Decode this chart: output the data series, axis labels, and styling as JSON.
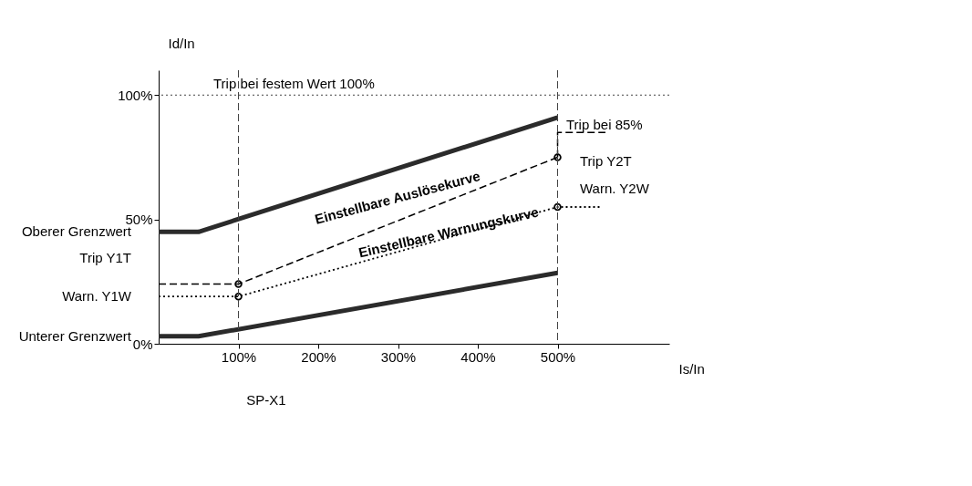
{
  "chart_data": {
    "type": "line",
    "xlabel": "Is/In",
    "ylabel": "Id/In",
    "xlim": [
      0,
      640
    ],
    "ylim": [
      0,
      110
    ],
    "xticks": [
      {
        "value": 100,
        "label": "100%"
      },
      {
        "value": 200,
        "label": "200%"
      },
      {
        "value": 300,
        "label": "300%"
      },
      {
        "value": 400,
        "label": "400%"
      },
      {
        "value": 500,
        "label": "500%"
      }
    ],
    "yticks": [
      {
        "value": 0,
        "label": "0%"
      },
      {
        "value": 50,
        "label": "50%"
      },
      {
        "value": 100,
        "label": "100%"
      }
    ],
    "series": [
      {
        "color": "#2b2b2b",
        "x": [
          0,
          50,
          500
        ],
        "values": [
          45,
          45,
          91
        ],
        "line_style": "solid"
      },
      {
        "color": "#2b2b2b",
        "x": [
          0,
          50,
          500
        ],
        "values": [
          3,
          3,
          28.5
        ],
        "line_style": "solid"
      },
      {
        "color": "#000000",
        "x": [
          0,
          100,
          500
        ],
        "values": [
          24,
          24,
          75
        ],
        "line_style": "dashed"
      },
      {
        "color": "#000000",
        "x": [
          500,
          500,
          560
        ],
        "values": [
          75,
          85,
          85
        ],
        "line_style": "dashed"
      },
      {
        "color": "#000000",
        "x": [
          0,
          100,
          500,
          555
        ],
        "values": [
          19,
          19,
          55,
          55
        ],
        "line_style": "dotted"
      },
      {
        "type": "scatter",
        "color": "#000000",
        "x": [
          100,
          100,
          500,
          500
        ],
        "values": [
          24,
          19,
          75,
          55
        ],
        "marker": "circle"
      }
    ],
    "ref_lines": [
      {
        "axis": "y",
        "value": 100,
        "label": "Trip bei festem Wert 100%",
        "line_style": "dotted",
        "color": "#444444"
      },
      {
        "axis": "x",
        "value": 100,
        "label": null,
        "line_style": "dashed",
        "color": "#444444"
      },
      {
        "axis": "x",
        "value": 500,
        "label": null,
        "line_style": "dashed",
        "color": "#444444"
      }
    ],
    "annotations": [
      "Oberer Grenzwert",
      "Trip Y1T",
      "Warn. Y1W",
      "Unterer Grenzwert",
      "SP-X1",
      "Trip bei 85%",
      "Trip Y2T",
      "Warn. Y2W",
      "Einstellbare Auslösekurve",
      "Einstellbare Warnungskurve"
    ],
    "grid": false
  }
}
